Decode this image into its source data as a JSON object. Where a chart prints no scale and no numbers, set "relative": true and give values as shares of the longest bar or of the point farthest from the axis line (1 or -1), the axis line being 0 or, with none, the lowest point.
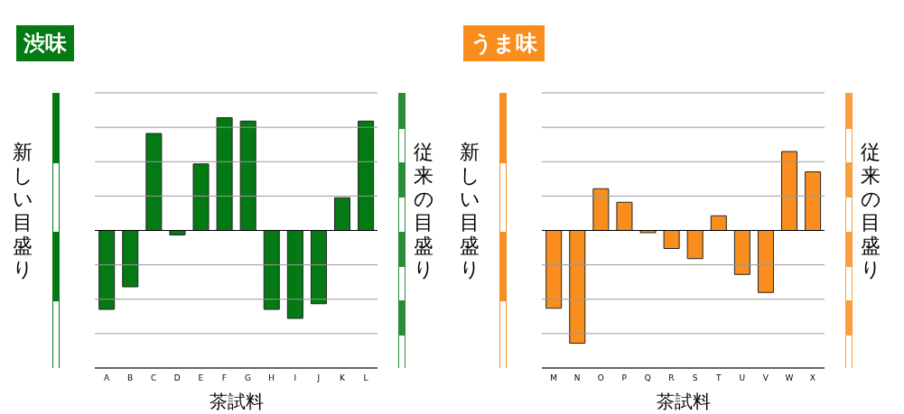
{
  "chart_data": [
    {
      "type": "bar",
      "title": "渋味",
      "xlabel": "茶試料",
      "ylabel": "新しい目盛り",
      "y2label": "従来の目盛り",
      "relative": true,
      "grid": "y",
      "legend": false,
      "categories": [
        "A",
        "B",
        "C",
        "D",
        "E",
        "F",
        "G",
        "H",
        "I",
        "J",
        "K",
        "L"
      ],
      "series": [
        {
          "color": "#047a14",
          "values": [
            -0.7,
            -0.5,
            0.86,
            -0.04,
            0.59,
            1,
            0.97,
            -0.7,
            -0.78,
            -0.65,
            0.29,
            0.97
          ]
        }
      ]
    },
    {
      "type": "bar",
      "title": "うま味",
      "xlabel": "茶試料",
      "ylabel": "新しい目盛り",
      "y2label": "従来の目盛り",
      "relative": true,
      "grid": "y",
      "legend": false,
      "categories": [
        "M",
        "N",
        "O",
        "P",
        "Q",
        "R",
        "S",
        "T",
        "U",
        "V",
        "W",
        "X"
      ],
      "series": [
        {
          "color": "#f98e1e",
          "values": [
            -0.69,
            -1,
            0.37,
            0.25,
            -0.02,
            -0.16,
            -0.25,
            0.13,
            -0.39,
            -0.55,
            0.7,
            0.52
          ]
        }
      ]
    }
  ]
}
